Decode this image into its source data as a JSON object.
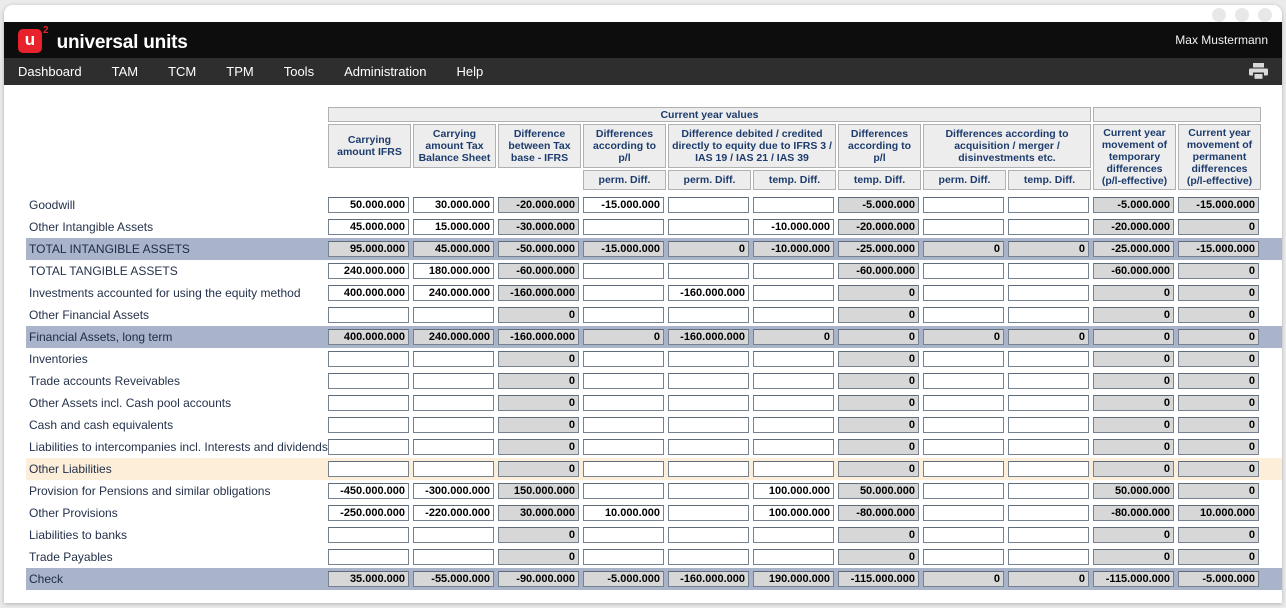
{
  "window": {
    "brand": "universal units",
    "logo_letter": "u",
    "logo_sup": "2",
    "user": "Max Mustermann"
  },
  "nav": {
    "items": [
      "Dashboard",
      "TAM",
      "TCM",
      "TPM",
      "Tools",
      "Administration",
      "Help"
    ],
    "printer_icon": "printer-icon"
  },
  "colors": {
    "accent_red": "#e8222d",
    "titlebar": "#0d0d0d",
    "navbar": "#2e2e2e",
    "highlight_row": "#a9b4cb",
    "peach_row": "#fdeed9",
    "readonly_bg": "#d7d7d7",
    "header_text": "#1d3c6d"
  },
  "table": {
    "group_header": "Current year values",
    "columns": [
      "Carrying amount IFRS",
      "Carrying amount Tax Balance Sheet",
      "Difference between Tax base - IFRS",
      "Differences according to p/l",
      "Difference debited / credited directly to equity due to IFRS 3 / IAS 19 / IAS 21 / IAS 39",
      "Differences according to p/l",
      "Differences according to acquisition / merger / disinvestments etc.",
      "Current year movement of temporary differences (p/l-effective)",
      "Current year movement of permanent differences (p/l-effective)"
    ],
    "subheaders": [
      "perm. Diff.",
      "perm. Diff.",
      "temp. Diff.",
      "temp. Diff.",
      "perm. Diff.",
      "temp. Diff."
    ],
    "readonly_cols": [
      2,
      6,
      9,
      10
    ],
    "rows": [
      {
        "label": "Goodwill",
        "style": "normal",
        "values": [
          "50.000.000",
          "30.000.000",
          "-20.000.000",
          "-15.000.000",
          "",
          "",
          "-5.000.000",
          "",
          "",
          "-5.000.000",
          "-15.000.000"
        ]
      },
      {
        "label": "Other Intangible Assets",
        "style": "normal",
        "values": [
          "45.000.000",
          "15.000.000",
          "-30.000.000",
          "",
          "",
          "-10.000.000",
          "-20.000.000",
          "",
          "",
          "-20.000.000",
          "0"
        ]
      },
      {
        "label": "TOTAL INTANGIBLE ASSETS",
        "style": "total",
        "values": [
          "95.000.000",
          "45.000.000",
          "-50.000.000",
          "-15.000.000",
          "0",
          "-10.000.000",
          "-25.000.000",
          "0",
          "0",
          "-25.000.000",
          "-15.000.000"
        ]
      },
      {
        "label": "TOTAL TANGIBLE ASSETS",
        "style": "normal",
        "values": [
          "240.000.000",
          "180.000.000",
          "-60.000.000",
          "",
          "",
          "",
          "-60.000.000",
          "",
          "",
          "-60.000.000",
          "0"
        ]
      },
      {
        "label": "Investments accounted for using the equity method",
        "style": "normal",
        "values": [
          "400.000.000",
          "240.000.000",
          "-160.000.000",
          "",
          "-160.000.000",
          "",
          "0",
          "",
          "",
          "0",
          "0"
        ]
      },
      {
        "label": "Other Financial Assets",
        "style": "normal",
        "values": [
          "",
          "",
          "0",
          "",
          "",
          "",
          "0",
          "",
          "",
          "0",
          "0"
        ]
      },
      {
        "label": "Financial Assets, long term",
        "style": "total",
        "values": [
          "400.000.000",
          "240.000.000",
          "-160.000.000",
          "0",
          "-160.000.000",
          "0",
          "0",
          "0",
          "0",
          "0",
          "0"
        ]
      },
      {
        "label": "Inventories",
        "style": "normal",
        "values": [
          "",
          "",
          "0",
          "",
          "",
          "",
          "0",
          "",
          "",
          "0",
          "0"
        ]
      },
      {
        "label": "Trade accounts Reveivables",
        "style": "normal",
        "values": [
          "",
          "",
          "0",
          "",
          "",
          "",
          "0",
          "",
          "",
          "0",
          "0"
        ]
      },
      {
        "label": "Other Assets incl. Cash pool accounts",
        "style": "normal",
        "values": [
          "",
          "",
          "0",
          "",
          "",
          "",
          "0",
          "",
          "",
          "0",
          "0"
        ]
      },
      {
        "label": "Cash and cash equivalents",
        "style": "normal",
        "values": [
          "",
          "",
          "0",
          "",
          "",
          "",
          "0",
          "",
          "",
          "0",
          "0"
        ]
      },
      {
        "label": "Liabilities to intercompanies incl. Interests and dividends",
        "style": "normal",
        "values": [
          "",
          "",
          "0",
          "",
          "",
          "",
          "0",
          "",
          "",
          "0",
          "0"
        ]
      },
      {
        "label": "Other Liabilities",
        "style": "peach",
        "values": [
          "",
          "",
          "0",
          "",
          "",
          "",
          "0",
          "",
          "",
          "0",
          "0"
        ]
      },
      {
        "label": "Provision for Pensions and similar obligations",
        "style": "normal",
        "values": [
          "-450.000.000",
          "-300.000.000",
          "150.000.000",
          "",
          "",
          "100.000.000",
          "50.000.000",
          "",
          "",
          "50.000.000",
          "0"
        ]
      },
      {
        "label": "Other Provisions",
        "style": "normal",
        "values": [
          "-250.000.000",
          "-220.000.000",
          "30.000.000",
          "10.000.000",
          "",
          "100.000.000",
          "-80.000.000",
          "",
          "",
          "-80.000.000",
          "10.000.000"
        ]
      },
      {
        "label": "Liabilities to banks",
        "style": "normal",
        "values": [
          "",
          "",
          "0",
          "",
          "",
          "",
          "0",
          "",
          "",
          "0",
          "0"
        ]
      },
      {
        "label": "Trade Payables",
        "style": "normal",
        "values": [
          "",
          "",
          "0",
          "",
          "",
          "",
          "0",
          "",
          "",
          "0",
          "0"
        ]
      },
      {
        "label": "Check",
        "style": "total",
        "values": [
          "35.000.000",
          "-55.000.000",
          "-90.000.000",
          "-5.000.000",
          "-160.000.000",
          "190.000.000",
          "-115.000.000",
          "0",
          "0",
          "-115.000.000",
          "-5.000.000"
        ]
      }
    ]
  }
}
